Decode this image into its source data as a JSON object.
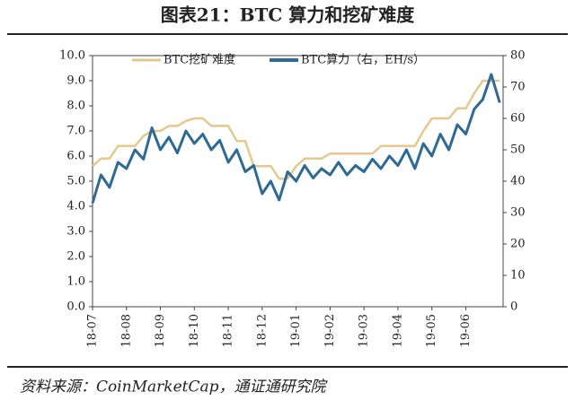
{
  "chart_data": {
    "type": "line",
    "title": "图表21：BTC 算力和挖矿难度",
    "source": "资料来源：CoinMarketCap，通证通研究院",
    "x": [
      0,
      0.25,
      0.5,
      0.75,
      1,
      1.25,
      1.5,
      1.75,
      2,
      2.25,
      2.5,
      2.75,
      3,
      3.25,
      3.5,
      3.75,
      4,
      4.25,
      4.5,
      4.75,
      5,
      5.25,
      5.5,
      5.75,
      6,
      6.25,
      6.5,
      6.75,
      7,
      7.25,
      7.5,
      7.75,
      8,
      8.25,
      8.5,
      8.75,
      9,
      9.25,
      9.5,
      9.75,
      10,
      10.25,
      10.5,
      10.75,
      11,
      11.25,
      11.5,
      11.75,
      12
    ],
    "xlim": [
      0,
      12.1
    ],
    "xticks": [
      {
        "value": 0,
        "label": "18-07"
      },
      {
        "value": 1,
        "label": "18-08"
      },
      {
        "value": 2,
        "label": "18-09"
      },
      {
        "value": 3,
        "label": "18-10"
      },
      {
        "value": 4,
        "label": "18-11"
      },
      {
        "value": 5,
        "label": "18-12"
      },
      {
        "value": 6,
        "label": "19-01"
      },
      {
        "value": 7,
        "label": "19-02"
      },
      {
        "value": 8,
        "label": "19-03"
      },
      {
        "value": 9,
        "label": "19-04"
      },
      {
        "value": 10,
        "label": "19-05"
      },
      {
        "value": 11,
        "label": "19-06"
      }
    ],
    "ylim": [
      0,
      10
    ],
    "yticks": [
      {
        "value": 0,
        "label": "0.0"
      },
      {
        "value": 1,
        "label": "1.0"
      },
      {
        "value": 2,
        "label": "2.0"
      },
      {
        "value": 3,
        "label": "3.0"
      },
      {
        "value": 4,
        "label": "4.0"
      },
      {
        "value": 5,
        "label": "5.0"
      },
      {
        "value": 6,
        "label": "6.0"
      },
      {
        "value": 7,
        "label": "7.0"
      },
      {
        "value": 8,
        "label": "8.0"
      },
      {
        "value": 9,
        "label": "9.0"
      },
      {
        "value": 10,
        "label": "10.0"
      }
    ],
    "y2lim": [
      0,
      80
    ],
    "y2ticks": [
      0,
      10,
      20,
      30,
      40,
      50,
      60,
      70,
      80
    ],
    "series": [
      {
        "name": "BTC挖矿难度",
        "color": "#e6c88c",
        "values": [
          5.6,
          5.9,
          5.9,
          6.4,
          6.4,
          6.4,
          6.8,
          7.0,
          7.0,
          7.2,
          7.2,
          7.4,
          7.5,
          7.5,
          7.2,
          7.2,
          7.2,
          6.6,
          6.6,
          5.6,
          5.6,
          5.6,
          5.1,
          5.1,
          5.6,
          5.9,
          5.9,
          5.9,
          6.1,
          6.1,
          6.1,
          6.1,
          6.1,
          6.1,
          6.4,
          6.4,
          6.4,
          6.4,
          6.4,
          7.0,
          7.5,
          7.5,
          7.5,
          7.9,
          7.9,
          8.5,
          9.0,
          9.0,
          9.0
        ]
      },
      {
        "name": "BTC算力（右，EH/s）",
        "color": "#2d6a96",
        "axis": "y2",
        "values": [
          33,
          42,
          38,
          46,
          44,
          50,
          47,
          57,
          50,
          54,
          49,
          56,
          52,
          55,
          50,
          53,
          46,
          50,
          43,
          45,
          36,
          40,
          34,
          43,
          40,
          45,
          41,
          44,
          42,
          46,
          42,
          45,
          43,
          47,
          44,
          48,
          45,
          50,
          44,
          52,
          48,
          55,
          50,
          58,
          55,
          63,
          66,
          74,
          65
        ]
      }
    ]
  }
}
